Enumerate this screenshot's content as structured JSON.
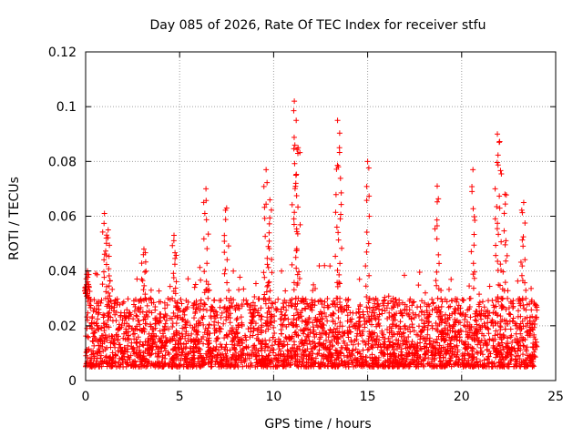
{
  "chart_data": {
    "type": "scatter",
    "title": "Day 085 of 2026, Rate Of TEC Index for receiver stfu",
    "xlabel": "GPS time / hours",
    "ylabel": "ROTI / TECUs",
    "xlim": [
      0,
      25
    ],
    "ylim": [
      0,
      0.12
    ],
    "x_ticks": [
      0,
      5,
      10,
      15,
      20,
      25
    ],
    "y_ticks": [
      0,
      0.02,
      0.04,
      0.06,
      0.08,
      0.1,
      0.12
    ],
    "x_tick_labels": [
      "0",
      "5",
      "10",
      "15",
      "20",
      "25"
    ],
    "y_tick_labels": [
      "0",
      "0.02",
      "0.04",
      "0.06",
      "0.08",
      "0.1",
      "0.12"
    ],
    "grid": true,
    "marker": "+",
    "series": [
      {
        "name": "ROTI",
        "color": "#ff0000",
        "x_range": [
          0,
          24
        ],
        "dense_band": [
          0.005,
          0.03
        ],
        "peaks": [
          {
            "x": 0.05,
            "y": 0.035
          },
          {
            "x": 0.1,
            "y": 0.04
          },
          {
            "x": 1.0,
            "y": 0.061
          },
          {
            "x": 1.2,
            "y": 0.055
          },
          {
            "x": 3.1,
            "y": 0.048
          },
          {
            "x": 4.7,
            "y": 0.053
          },
          {
            "x": 6.4,
            "y": 0.07
          },
          {
            "x": 7.5,
            "y": 0.063
          },
          {
            "x": 9.6,
            "y": 0.077
          },
          {
            "x": 9.8,
            "y": 0.066
          },
          {
            "x": 11.1,
            "y": 0.102
          },
          {
            "x": 11.2,
            "y": 0.095
          },
          {
            "x": 11.3,
            "y": 0.085
          },
          {
            "x": 13.4,
            "y": 0.095
          },
          {
            "x": 13.5,
            "y": 0.085
          },
          {
            "x": 15.0,
            "y": 0.08
          },
          {
            "x": 18.7,
            "y": 0.071
          },
          {
            "x": 20.6,
            "y": 0.077
          },
          {
            "x": 21.9,
            "y": 0.09
          },
          {
            "x": 22.0,
            "y": 0.087
          },
          {
            "x": 22.3,
            "y": 0.068
          },
          {
            "x": 23.3,
            "y": 0.065
          }
        ]
      }
    ]
  }
}
